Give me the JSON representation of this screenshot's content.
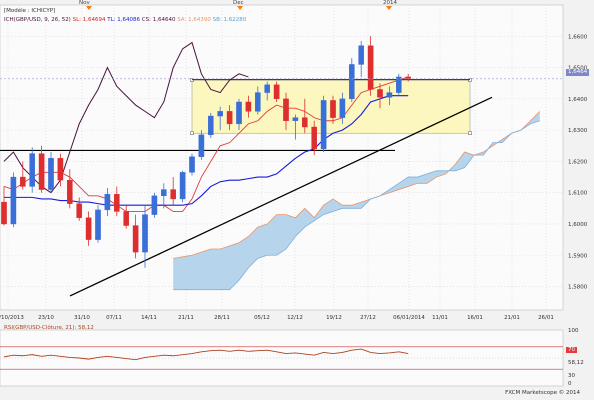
{
  "header": {
    "line1": "[Modèle : ICHICYP]",
    "line2_prefix": "ICH(GBP/USD, 9, 26, 52)",
    "sl": "SL: 1,64694",
    "tl": "TL: 1,64086",
    "cs": "CS: 1,64640",
    "sa": "SA: 1,64390",
    "sb": "SB: 1,62280"
  },
  "top_marks": [
    "Nov",
    "Dec",
    "2014"
  ],
  "price_label": "1,6464",
  "footer": "FXCM Marketscope © 2014",
  "colors": {
    "bull": "#3a6fd8",
    "bear": "#dd2f2f",
    "tenkan": "#e83838",
    "kijun": "#1a1ad8",
    "chikou": "#4a103a",
    "kumo": "#a9cce8",
    "kumo_edge": "#e8946e",
    "box": "#fbf7b8",
    "trend": "#000000",
    "rsi": "#b04020"
  },
  "chart_data": {
    "type": "candlestick",
    "instrument": "GBP/USD",
    "y_ticks": [
      "1,6600",
      "1,6500",
      "1,6400",
      "1,6300",
      "1,6200",
      "1,6100",
      "1,6000",
      "1,5900",
      "1,5800"
    ],
    "y_tick_values": [
      1.66,
      1.65,
      1.64,
      1.63,
      1.62,
      1.61,
      1.6,
      1.59,
      1.58
    ],
    "ylim": [
      1.5725,
      1.67
    ],
    "x_labels": [
      "16/10/2013",
      "23/10",
      "31/10",
      "07/11",
      "14/11",
      "21/11",
      "28/11",
      "05/12",
      "12/12",
      "19/12",
      "27/12",
      "06/01/2014",
      "11/01",
      "16/01",
      "21/01",
      "26/01"
    ],
    "candles": [
      {
        "o": 1.607,
        "h": 1.612,
        "l": 1.5995,
        "c": 1.6
      },
      {
        "o": 1.6,
        "h": 1.6165,
        "l": 1.599,
        "c": 1.615
      },
      {
        "o": 1.615,
        "h": 1.62,
        "l": 1.611,
        "c": 1.612
      },
      {
        "o": 1.612,
        "h": 1.6245,
        "l": 1.61,
        "c": 1.6225
      },
      {
        "o": 1.6225,
        "h": 1.625,
        "l": 1.61,
        "c": 1.611
      },
      {
        "o": 1.611,
        "h": 1.623,
        "l": 1.61,
        "c": 1.621
      },
      {
        "o": 1.621,
        "h": 1.6225,
        "l": 1.612,
        "c": 1.614
      },
      {
        "o": 1.614,
        "h": 1.6175,
        "l": 1.605,
        "c": 1.6065
      },
      {
        "o": 1.6065,
        "h": 1.6085,
        "l": 1.601,
        "c": 1.602
      },
      {
        "o": 1.602,
        "h": 1.604,
        "l": 1.593,
        "c": 1.595
      },
      {
        "o": 1.595,
        "h": 1.606,
        "l": 1.594,
        "c": 1.6045
      },
      {
        "o": 1.6045,
        "h": 1.6115,
        "l": 1.6025,
        "c": 1.6095
      },
      {
        "o": 1.6095,
        "h": 1.612,
        "l": 1.6025,
        "c": 1.604
      },
      {
        "o": 1.604,
        "h": 1.606,
        "l": 1.5985,
        "c": 1.5995
      },
      {
        "o": 1.5995,
        "h": 1.603,
        "l": 1.589,
        "c": 1.591
      },
      {
        "o": 1.591,
        "h": 1.606,
        "l": 1.586,
        "c": 1.603
      },
      {
        "o": 1.603,
        "h": 1.61,
        "l": 1.602,
        "c": 1.609
      },
      {
        "o": 1.609,
        "h": 1.613,
        "l": 1.605,
        "c": 1.611
      },
      {
        "o": 1.611,
        "h": 1.615,
        "l": 1.606,
        "c": 1.608
      },
      {
        "o": 1.608,
        "h": 1.617,
        "l": 1.607,
        "c": 1.6165
      },
      {
        "o": 1.6165,
        "h": 1.6225,
        "l": 1.6155,
        "c": 1.6215
      },
      {
        "o": 1.6215,
        "h": 1.63,
        "l": 1.6205,
        "c": 1.6285
      },
      {
        "o": 1.6285,
        "h": 1.6355,
        "l": 1.6275,
        "c": 1.6345
      },
      {
        "o": 1.6345,
        "h": 1.6375,
        "l": 1.63,
        "c": 1.636
      },
      {
        "o": 1.636,
        "h": 1.638,
        "l": 1.63,
        "c": 1.632
      },
      {
        "o": 1.632,
        "h": 1.64,
        "l": 1.63,
        "c": 1.639
      },
      {
        "o": 1.639,
        "h": 1.641,
        "l": 1.634,
        "c": 1.636
      },
      {
        "o": 1.636,
        "h": 1.644,
        "l": 1.635,
        "c": 1.642
      },
      {
        "o": 1.642,
        "h": 1.6455,
        "l": 1.6395,
        "c": 1.6445
      },
      {
        "o": 1.6445,
        "h": 1.6455,
        "l": 1.639,
        "c": 1.64
      },
      {
        "o": 1.64,
        "h": 1.642,
        "l": 1.63,
        "c": 1.633
      },
      {
        "o": 1.633,
        "h": 1.635,
        "l": 1.627,
        "c": 1.634
      },
      {
        "o": 1.634,
        "h": 1.64,
        "l": 1.629,
        "c": 1.631
      },
      {
        "o": 1.631,
        "h": 1.633,
        "l": 1.622,
        "c": 1.624
      },
      {
        "o": 1.624,
        "h": 1.641,
        "l": 1.623,
        "c": 1.6395
      },
      {
        "o": 1.6395,
        "h": 1.641,
        "l": 1.632,
        "c": 1.634
      },
      {
        "o": 1.634,
        "h": 1.642,
        "l": 1.632,
        "c": 1.64
      },
      {
        "o": 1.64,
        "h": 1.653,
        "l": 1.639,
        "c": 1.651
      },
      {
        "o": 1.651,
        "h": 1.6585,
        "l": 1.647,
        "c": 1.657
      },
      {
        "o": 1.657,
        "h": 1.66,
        "l": 1.641,
        "c": 1.643
      },
      {
        "o": 1.643,
        "h": 1.645,
        "l": 1.637,
        "c": 1.6405
      },
      {
        "o": 1.6405,
        "h": 1.644,
        "l": 1.638,
        "c": 1.642
      },
      {
        "o": 1.642,
        "h": 1.648,
        "l": 1.641,
        "c": 1.647
      },
      {
        "o": 1.647,
        "h": 1.648,
        "l": 1.6455,
        "c": 1.6465
      }
    ],
    "tenkan": [
      1.612,
      1.611,
      1.613,
      1.615,
      1.6165,
      1.6165,
      1.6165,
      1.615,
      1.612,
      1.609,
      1.609,
      1.608,
      1.606,
      1.604,
      1.604,
      1.604,
      1.606,
      1.606,
      1.604,
      1.604,
      1.608,
      1.615,
      1.62,
      1.625,
      1.626,
      1.629,
      1.632,
      1.633,
      1.636,
      1.638,
      1.637,
      1.637,
      1.636,
      1.634,
      1.633,
      1.633,
      1.634,
      1.638,
      1.642,
      1.643,
      1.644,
      1.645,
      1.646,
      1.647
    ],
    "kijun": [
      1.6085,
      1.6085,
      1.6085,
      1.6085,
      1.608,
      1.608,
      1.6075,
      1.6075,
      1.607,
      1.607,
      1.6065,
      1.606,
      1.606,
      1.606,
      1.606,
      1.606,
      1.606,
      1.606,
      1.606,
      1.606,
      1.6065,
      1.609,
      1.612,
      1.6135,
      1.614,
      1.614,
      1.6145,
      1.615,
      1.615,
      1.616,
      1.6185,
      1.621,
      1.623,
      1.624,
      1.627,
      1.629,
      1.63,
      1.632,
      1.635,
      1.639,
      1.64,
      1.641,
      1.641,
      1.641
    ],
    "chikou": [
      1.62,
      1.623,
      1.618,
      1.615,
      1.612,
      1.61,
      1.614,
      1.623,
      1.632,
      1.638,
      1.643,
      1.65,
      1.644,
      1.641,
      1.638,
      1.636,
      1.634,
      1.639,
      1.65,
      1.656,
      1.658,
      1.648,
      1.643,
      1.642,
      1.646,
      1.648,
      1.647
    ],
    "kumo_sa": [
      1.589,
      1.5895,
      1.59,
      1.591,
      1.592,
      1.592,
      1.593,
      1.594,
      1.596,
      1.599,
      1.6,
      1.603,
      1.603,
      1.602,
      1.605,
      1.602,
      1.606,
      1.608,
      1.606,
      1.606,
      1.607,
      1.608,
      1.609,
      1.61,
      1.611,
      1.612,
      1.613,
      1.613,
      1.615,
      1.616,
      1.619,
      1.623,
      1.622,
      1.623,
      1.625,
      1.627,
      1.629,
      1.63,
      1.633,
      1.636
    ],
    "kumo_sb": [
      1.579,
      1.579,
      1.579,
      1.579,
      1.579,
      1.579,
      1.579,
      1.582,
      1.586,
      1.589,
      1.59,
      1.59,
      1.592,
      1.596,
      1.599,
      1.601,
      1.603,
      1.604,
      1.605,
      1.605,
      1.605,
      1.608,
      1.609,
      1.611,
      1.613,
      1.615,
      1.615,
      1.616,
      1.617,
      1.617,
      1.617,
      1.618,
      1.622,
      1.622,
      1.626,
      1.626,
      1.629,
      1.63,
      1.632,
      1.633
    ],
    "support_line_level": 1.6235,
    "rectangle": {
      "top": 1.646,
      "bottom": 1.629
    },
    "trendline": {
      "from": [
        1.577,
        "07/11"
      ],
      "to": [
        1.64,
        "16/01"
      ]
    },
    "rsi": {
      "title": "RSI(GBP/USD-Clôture, 21): 58,12",
      "levels": [
        "100",
        "70",
        "30",
        "0"
      ],
      "level_values": [
        100,
        70,
        30,
        0
      ],
      "value_label": "58,12",
      "values": [
        52,
        55,
        54,
        56,
        53,
        55,
        53,
        51,
        50,
        48,
        51,
        53,
        51,
        49,
        47,
        51,
        53,
        55,
        54,
        56,
        58,
        61,
        63,
        64,
        62,
        64,
        62,
        63,
        64,
        61,
        58,
        59,
        57,
        55,
        60,
        58,
        60,
        64,
        66,
        60,
        58,
        59,
        61,
        58
      ]
    }
  }
}
